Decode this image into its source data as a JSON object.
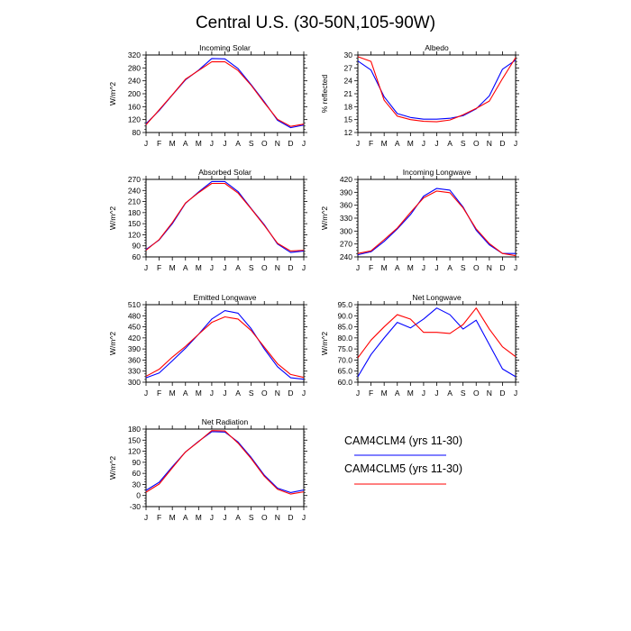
{
  "page": {
    "title": "Central U.S. (30-50N,105-90W)",
    "legend": [
      {
        "label": "CAM4CLM4 (yrs 11-30)",
        "color": "#0000ff"
      },
      {
        "label": "CAM4CLM5 (yrs 11-30)",
        "color": "#ff0000"
      }
    ]
  },
  "chart_data": [
    {
      "type": "line",
      "title": "Incoming Solar",
      "ylabel": "W/m^2",
      "categories": [
        "J",
        "F",
        "M",
        "A",
        "M",
        "J",
        "J",
        "A",
        "S",
        "O",
        "N",
        "D",
        "J"
      ],
      "ylim": [
        80,
        320
      ],
      "yticks": [
        80,
        120,
        160,
        200,
        240,
        280,
        320
      ],
      "ytick_labels": [
        "80",
        "120",
        "160",
        "200",
        "240",
        "280",
        "320"
      ],
      "series": [
        {
          "name": "CAM4CLM4 (yrs 11-30)",
          "color": "#0000ff",
          "values": [
            107,
            148,
            196,
            243,
            273,
            309,
            308,
            278,
            228,
            175,
            118,
            95,
            103
          ]
        },
        {
          "name": "CAM4CLM5 (yrs 11-30)",
          "color": "#ff0000",
          "values": [
            104,
            150,
            197,
            245,
            272,
            299,
            299,
            272,
            226,
            172,
            121,
            99,
            106
          ]
        }
      ]
    },
    {
      "type": "line",
      "title": "Albedo",
      "ylabel": "% reflected",
      "categories": [
        "J",
        "F",
        "M",
        "A",
        "M",
        "J",
        "J",
        "A",
        "S",
        "O",
        "N",
        "D",
        "J"
      ],
      "ylim": [
        12,
        30
      ],
      "yticks": [
        12,
        15,
        18,
        21,
        24,
        27,
        30
      ],
      "ytick_labels": [
        "12",
        "15",
        "18",
        "21",
        "24",
        "27",
        "30"
      ],
      "series": [
        {
          "name": "CAM4CLM4 (yrs 11-30)",
          "color": "#0000ff",
          "values": [
            28.6,
            26.5,
            20.3,
            16.4,
            15.5,
            15.1,
            15.1,
            15.3,
            15.9,
            17.5,
            20.5,
            26.7,
            28.8
          ]
        },
        {
          "name": "CAM4CLM5 (yrs 11-30)",
          "color": "#ff0000",
          "values": [
            29.6,
            28.5,
            19.5,
            15.8,
            15.0,
            14.6,
            14.5,
            14.9,
            16.1,
            17.6,
            19.3,
            24.5,
            29.4
          ]
        }
      ]
    },
    {
      "type": "line",
      "title": "Absorbed Solar",
      "ylabel": "W/m^2",
      "categories": [
        "J",
        "F",
        "M",
        "A",
        "M",
        "J",
        "J",
        "A",
        "S",
        "O",
        "N",
        "D",
        "J"
      ],
      "ylim": [
        60,
        270
      ],
      "yticks": [
        60,
        90,
        120,
        150,
        180,
        210,
        240,
        270
      ],
      "ytick_labels": [
        "60",
        "90",
        "120",
        "150",
        "180",
        "210",
        "240",
        "270"
      ],
      "series": [
        {
          "name": "CAM4CLM4 (yrs 11-30)",
          "color": "#0000ff",
          "values": [
            80,
            106,
            150,
            205,
            236,
            264,
            264,
            237,
            191,
            147,
            95,
            72,
            76
          ]
        },
        {
          "name": "CAM4CLM5 (yrs 11-30)",
          "color": "#ff0000",
          "values": [
            78,
            107,
            153,
            206,
            234,
            259,
            259,
            233,
            190,
            145,
            97,
            76,
            78
          ]
        }
      ]
    },
    {
      "type": "line",
      "title": "Incoming Longwave",
      "ylabel": "W/m^2",
      "categories": [
        "J",
        "F",
        "M",
        "A",
        "M",
        "J",
        "J",
        "A",
        "S",
        "O",
        "N",
        "D",
        "J"
      ],
      "ylim": [
        240,
        420
      ],
      "yticks": [
        240,
        270,
        300,
        330,
        360,
        390,
        420
      ],
      "ytick_labels": [
        "240",
        "270",
        "300",
        "330",
        "360",
        "390",
        "420"
      ],
      "series": [
        {
          "name": "CAM4CLM4 (yrs 11-30)",
          "color": "#0000ff",
          "values": [
            245,
            252,
            276,
            305,
            338,
            381,
            399,
            395,
            356,
            302,
            268,
            248,
            248
          ]
        },
        {
          "name": "CAM4CLM5 (yrs 11-30)",
          "color": "#ff0000",
          "values": [
            248,
            254,
            280,
            307,
            343,
            377,
            393,
            389,
            354,
            305,
            271,
            248,
            243
          ]
        }
      ]
    },
    {
      "type": "line",
      "title": "Emitted Longwave",
      "ylabel": "W/m^2",
      "categories": [
        "J",
        "F",
        "M",
        "A",
        "M",
        "J",
        "J",
        "A",
        "S",
        "O",
        "N",
        "D",
        "J"
      ],
      "ylim": [
        300,
        510
      ],
      "yticks": [
        300,
        330,
        360,
        390,
        420,
        450,
        480,
        510
      ],
      "ytick_labels": [
        "300",
        "330",
        "360",
        "390",
        "420",
        "450",
        "480",
        "510"
      ],
      "series": [
        {
          "name": "CAM4CLM4 (yrs 11-30)",
          "color": "#0000ff",
          "values": [
            312,
            325,
            358,
            392,
            430,
            471,
            494,
            487,
            445,
            390,
            342,
            312,
            308
          ]
        },
        {
          "name": "CAM4CLM5 (yrs 11-30)",
          "color": "#ff0000",
          "values": [
            316,
            335,
            368,
            397,
            430,
            462,
            477,
            471,
            440,
            395,
            350,
            321,
            313
          ]
        }
      ]
    },
    {
      "type": "line",
      "title": "Net Longwave",
      "ylabel": "W/m^2",
      "categories": [
        "J",
        "F",
        "M",
        "A",
        "M",
        "J",
        "J",
        "A",
        "S",
        "O",
        "N",
        "D",
        "J"
      ],
      "ylim": [
        60,
        95
      ],
      "yticks": [
        60,
        65,
        70,
        75,
        80,
        85,
        90,
        95
      ],
      "ytick_labels": [
        "60.0",
        "65.0",
        "70.0",
        "75.0",
        "80.0",
        "85.0",
        "90.0",
        "95.0"
      ],
      "series": [
        {
          "name": "CAM4CLM4 (yrs 11-30)",
          "color": "#0000ff",
          "values": [
            62.5,
            72.5,
            80.0,
            87.0,
            84.5,
            88.5,
            93.5,
            90.5,
            84.0,
            88.0,
            77.0,
            66.0,
            62.5
          ]
        },
        {
          "name": "CAM4CLM5 (yrs 11-30)",
          "color": "#ff0000",
          "values": [
            71.0,
            79.0,
            85.0,
            90.5,
            88.5,
            82.5,
            82.5,
            82.0,
            86.0,
            93.5,
            84.0,
            76.0,
            71.5
          ]
        }
      ]
    },
    {
      "type": "line",
      "title": "Net Radiation",
      "ylabel": "W/m^2",
      "categories": [
        "J",
        "F",
        "M",
        "A",
        "M",
        "J",
        "J",
        "A",
        "S",
        "O",
        "N",
        "D",
        "J"
      ],
      "ylim": [
        -30,
        180
      ],
      "yticks": [
        -30,
        0,
        30,
        60,
        90,
        120,
        150,
        180
      ],
      "ytick_labels": [
        "-30",
        "0",
        "30",
        "60",
        "90",
        "120",
        "150",
        "180"
      ],
      "series": [
        {
          "name": "CAM4CLM4 (yrs 11-30)",
          "color": "#0000ff",
          "values": [
            14,
            36,
            78,
            118,
            147,
            173,
            172,
            145,
            103,
            55,
            20,
            8,
            15
          ]
        },
        {
          "name": "CAM4CLM5 (yrs 11-30)",
          "color": "#ff0000",
          "values": [
            9,
            31,
            75,
            118,
            146,
            176,
            175,
            142,
            100,
            52,
            17,
            4,
            10
          ]
        }
      ]
    }
  ]
}
